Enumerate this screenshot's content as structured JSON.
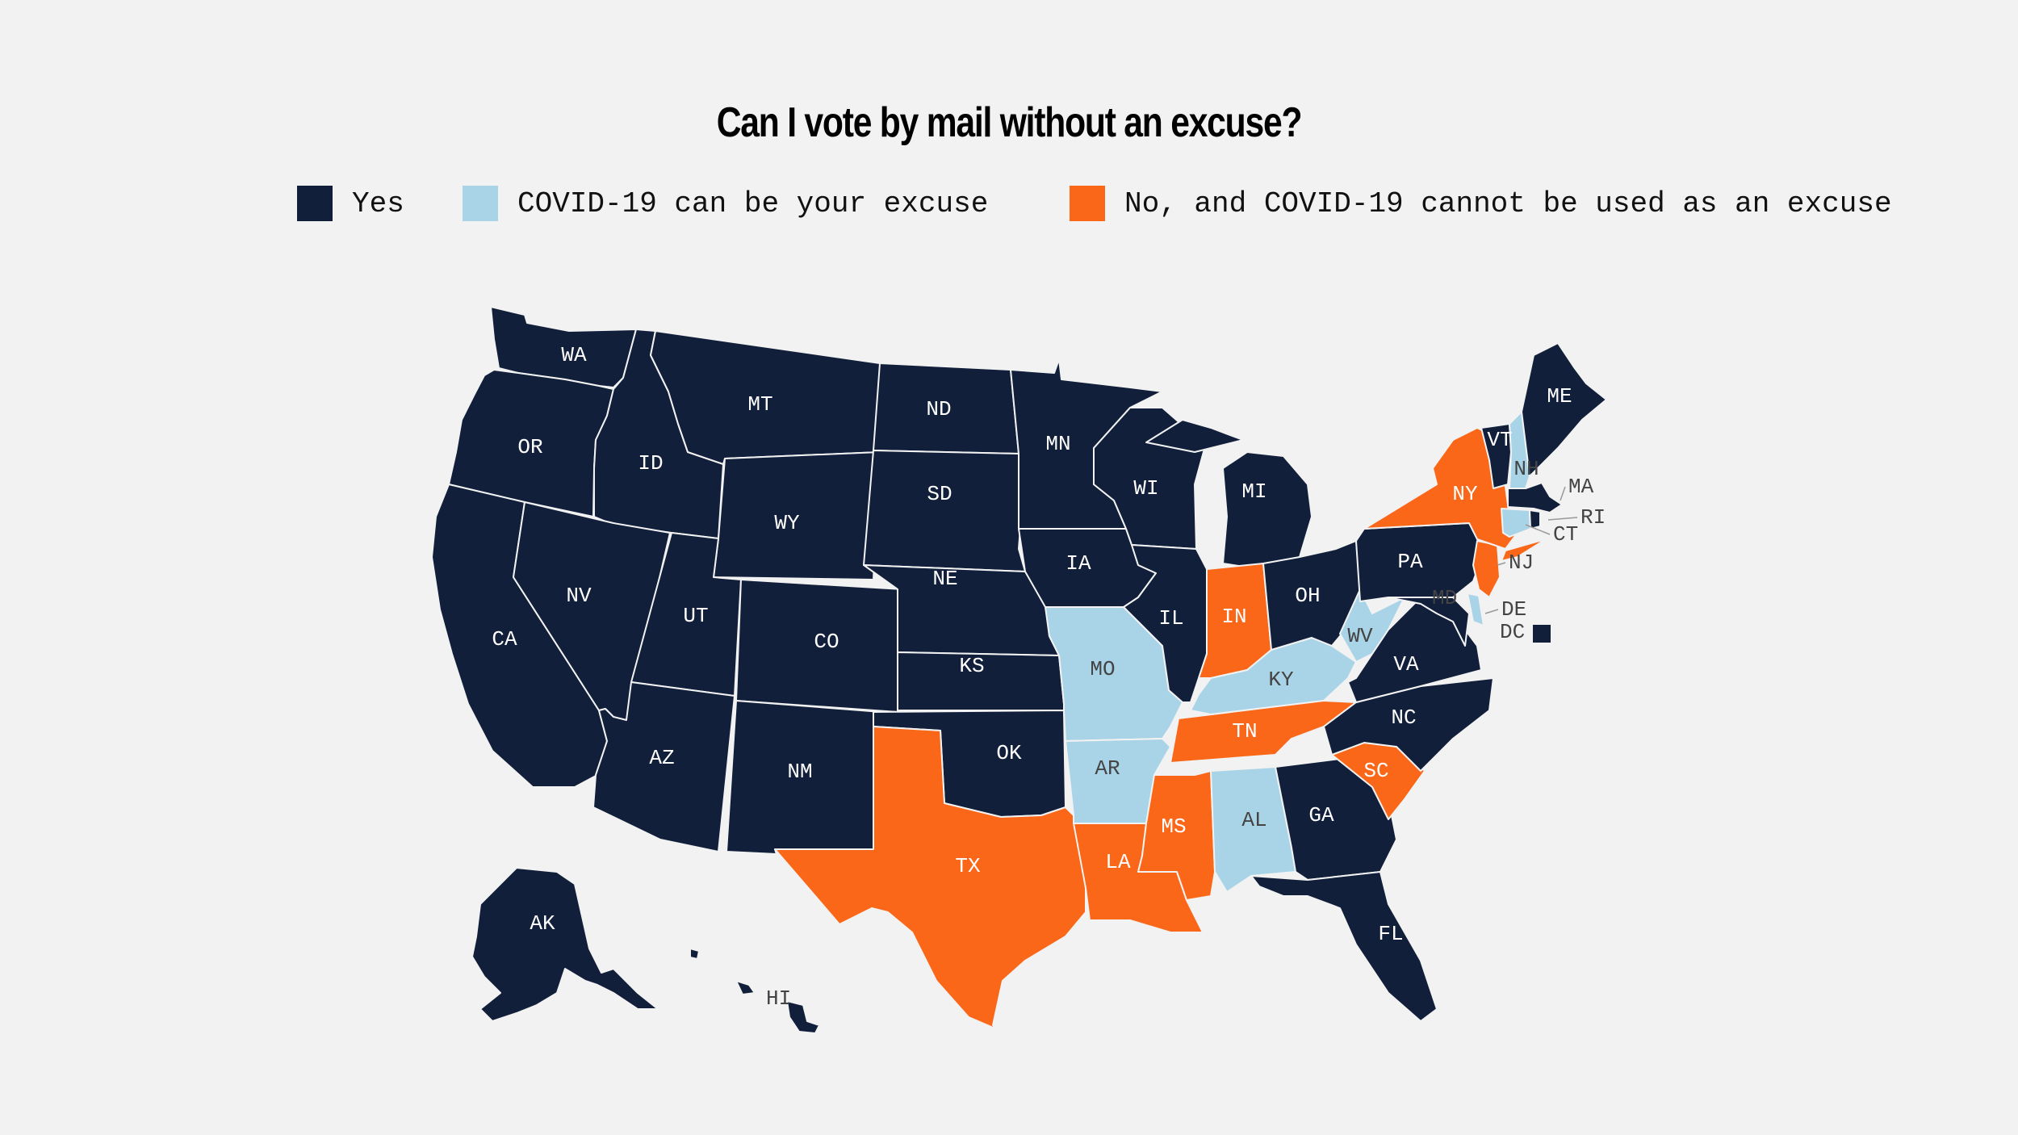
{
  "title": "Can I vote by mail without an excuse?",
  "legend": [
    {
      "key": "yes",
      "label": "Yes",
      "color": "#111f3a"
    },
    {
      "key": "covid",
      "label": "COVID-19 can be your excuse",
      "color": "#a9d4e7"
    },
    {
      "key": "no",
      "label": "No, and COVID-19 cannot be used as an excuse",
      "color": "#fb6718"
    }
  ],
  "colors": {
    "yes": "#111f3a",
    "covid": "#a9d4e7",
    "no": "#fb6718",
    "label_dark": "#ffffff",
    "label_light": "#444444"
  },
  "states": {
    "WA": "yes",
    "OR": "yes",
    "CA": "yes",
    "ID": "yes",
    "NV": "yes",
    "MT": "yes",
    "WY": "yes",
    "UT": "yes",
    "AZ": "yes",
    "CO": "yes",
    "NM": "yes",
    "ND": "yes",
    "SD": "yes",
    "NE": "yes",
    "KS": "yes",
    "OK": "yes",
    "TX": "no",
    "MN": "yes",
    "IA": "yes",
    "MO": "covid",
    "AR": "covid",
    "LA": "no",
    "WI": "yes",
    "IL": "yes",
    "MS": "no",
    "MI": "yes",
    "IN": "no",
    "KY": "covid",
    "TN": "no",
    "AL": "covid",
    "OH": "yes",
    "WV": "covid",
    "GA": "yes",
    "FL": "yes",
    "SC": "no",
    "NC": "yes",
    "VA": "yes",
    "PA": "yes",
    "NY": "no",
    "VT": "yes",
    "NH": "covid",
    "ME": "yes",
    "MA": "yes",
    "RI": "yes",
    "CT": "covid",
    "NJ": "no",
    "DE": "covid",
    "MD": "yes",
    "DC": "yes",
    "AK": "yes",
    "HI": "yes"
  }
}
